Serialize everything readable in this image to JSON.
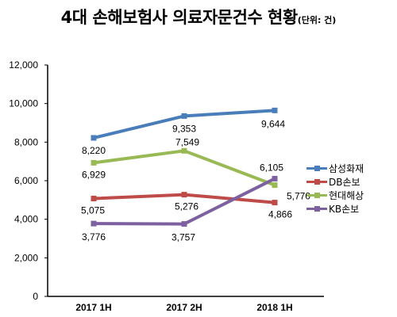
{
  "title": {
    "main": "4대 손해보험사 의료자문건수 현황",
    "unit": "(단위: 건)"
  },
  "chart_data": {
    "type": "line",
    "categories": [
      "2017 1H",
      "2017 2H",
      "2018 1H"
    ],
    "yticks": [
      "0",
      "2,000",
      "4,000",
      "6,000",
      "8,000",
      "10,000",
      "12,000"
    ],
    "ylim": [
      0,
      12000
    ],
    "grid": false,
    "legend_position": "right",
    "series": [
      {
        "name": "삼성화재",
        "color": "#4a7ebb",
        "values": [
          8220,
          9353,
          9644
        ],
        "labels": [
          "8,220",
          "9,353",
          "9,644"
        ]
      },
      {
        "name": "DB손보",
        "color": "#be4b48",
        "values": [
          5075,
          5276,
          4866
        ],
        "labels": [
          "5,075",
          "5,276",
          "4,866"
        ]
      },
      {
        "name": "현대해상",
        "color": "#98b954",
        "values": [
          6929,
          7549,
          5770
        ],
        "labels": [
          "6,929",
          "7,549",
          "5,770"
        ]
      },
      {
        "name": "KB손보",
        "color": "#7d60a0",
        "values": [
          3776,
          3757,
          6105
        ],
        "labels": [
          "3,776",
          "3,757",
          "6,105"
        ]
      }
    ]
  }
}
